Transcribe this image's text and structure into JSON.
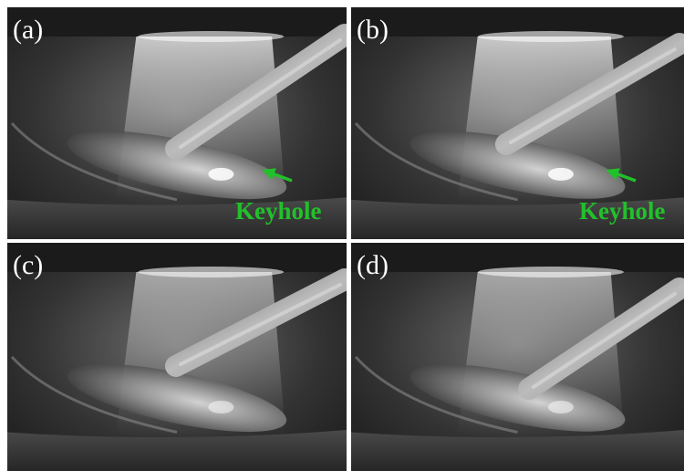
{
  "panels": [
    {
      "label": "(a)",
      "annotation": "Keyhole"
    },
    {
      "label": "(b)",
      "annotation": "Keyhole"
    },
    {
      "label": "(c)"
    },
    {
      "label": "(d)"
    }
  ]
}
